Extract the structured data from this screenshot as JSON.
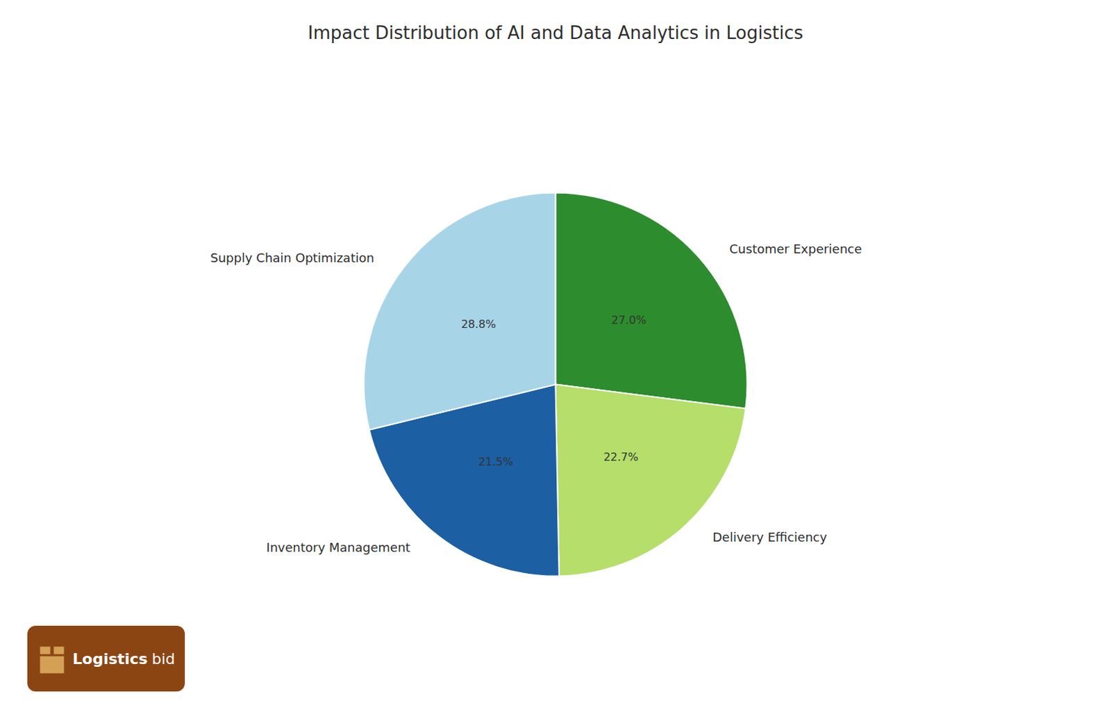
{
  "chart_data": {
    "type": "pie",
    "title": "Impact Distribution of AI and Data Analytics in Logistics",
    "categories": [
      "Customer Experience",
      "Delivery Efficiency",
      "Inventory Management",
      "Supply Chain Optimization"
    ],
    "values": [
      27.0,
      22.7,
      21.5,
      28.8
    ],
    "value_labels": [
      "27.0%",
      "22.7%",
      "21.5%",
      "28.8%"
    ],
    "colors": [
      "#2d8c2d",
      "#b5de6a",
      "#1c5fa3",
      "#a8d4e8"
    ],
    "data_labels": true,
    "annotations": [
      "Logistics",
      "bid"
    ]
  }
}
